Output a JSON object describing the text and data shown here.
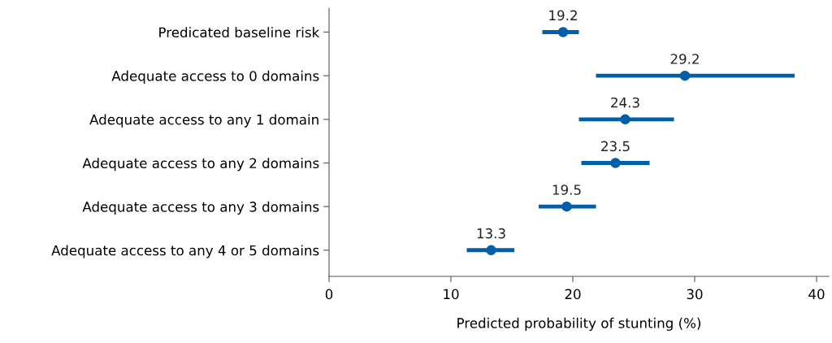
{
  "chart_data": {
    "type": "scatter",
    "orientation": "horizontal",
    "xlabel": "Predicted probability of stunting (%)",
    "categories": [
      "Predicated baseline risk",
      "Adequate access to 0 domains",
      "Adequate access to any 1 domain",
      "Adequate access to any 2 domains",
      "Adequate access to any 3 domains",
      "Adequate access to any 4 or 5 domains"
    ],
    "values": [
      19.2,
      29.2,
      24.3,
      23.5,
      19.5,
      13.3
    ],
    "errors": [
      [
        17.5,
        20.5
      ],
      [
        21.9,
        38.2
      ],
      [
        20.5,
        28.3
      ],
      [
        20.7,
        26.3
      ],
      [
        17.2,
        21.9
      ],
      [
        11.3,
        15.2
      ]
    ],
    "color": "#005fa8",
    "marker": "circle",
    "data_labels": true,
    "grid": false,
    "legend": false,
    "xlim": [
      0,
      41
    ],
    "xticks": [
      0,
      10,
      20,
      30,
      40
    ]
  }
}
